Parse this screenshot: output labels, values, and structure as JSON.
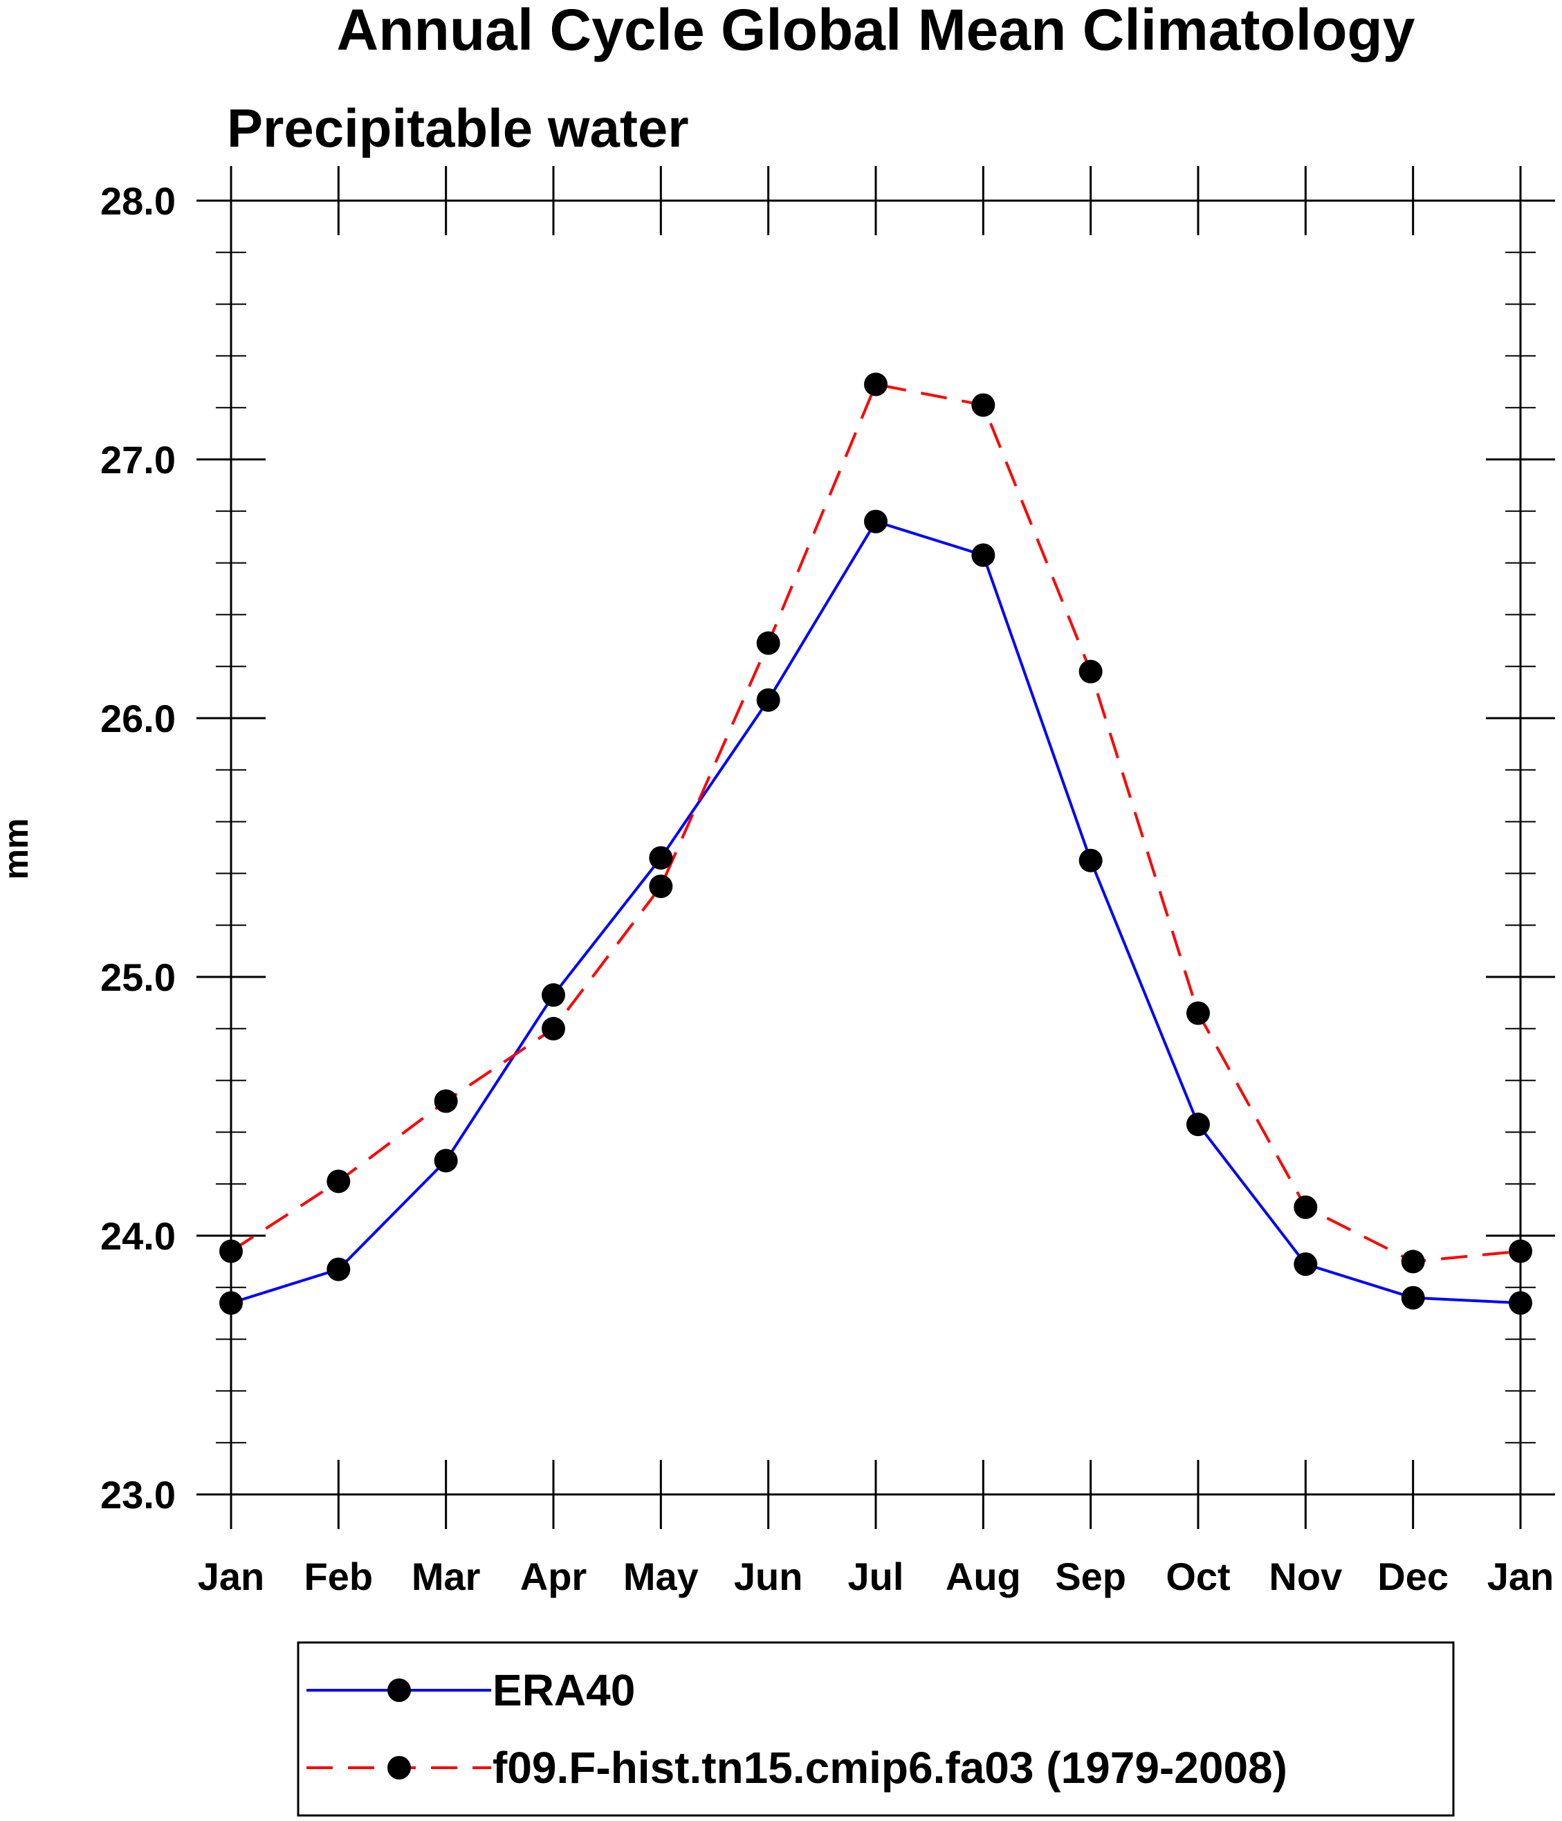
{
  "chart_data": {
    "type": "line",
    "title": "Annual Cycle Global Mean Climatology",
    "subtitle": "Precipitable water",
    "xlabel": "",
    "ylabel": "mm",
    "categories": [
      "Jan",
      "Feb",
      "Mar",
      "Apr",
      "May",
      "Jun",
      "Jul",
      "Aug",
      "Sep",
      "Oct",
      "Nov",
      "Dec",
      "Jan"
    ],
    "ylim": [
      23.0,
      28.0
    ],
    "yticks": [
      "23.0",
      "24.0",
      "25.0",
      "26.0",
      "27.0",
      "28.0"
    ],
    "yminor_step": 0.2,
    "grid": false,
    "legend_position": "bottom",
    "series": [
      {
        "name": "ERA40",
        "color": "#0000ff",
        "line_style": "solid",
        "marker_color": "#000000",
        "values": [
          23.74,
          23.87,
          24.29,
          24.93,
          25.46,
          26.07,
          26.76,
          26.63,
          25.45,
          24.43,
          23.89,
          23.76,
          23.74
        ]
      },
      {
        "name": "f09.F-hist.tn15.cmip6.fa03 (1979-2008)",
        "color": "#ff0000",
        "line_style": "dashed",
        "marker_color": "#000000",
        "values": [
          23.94,
          24.21,
          24.52,
          24.8,
          25.35,
          26.29,
          27.29,
          27.21,
          26.18,
          24.86,
          24.11,
          23.9,
          23.94
        ]
      }
    ]
  }
}
